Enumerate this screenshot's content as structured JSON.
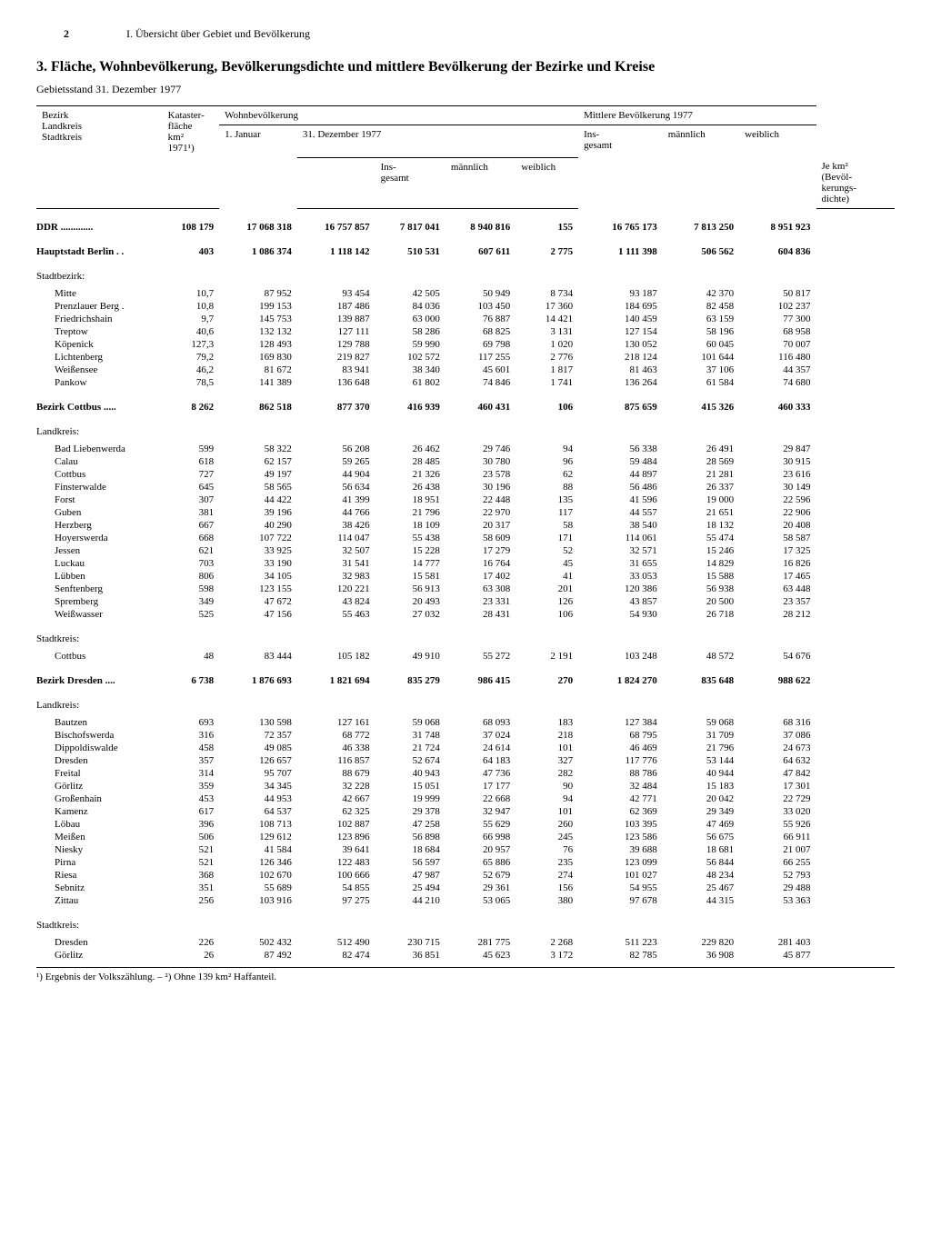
{
  "page_number": "2",
  "section_header": "I. Übersicht über Gebiet und Bevölkerung",
  "title": "3. Fläche, Wohnbevölkerung, Bevölkerungsdichte und mittlere Bevölkerung der Bezirke und Kreise",
  "subtitle": "Gebietsstand 31. Dezember 1977",
  "columns": {
    "c1a": "Bezirk",
    "c1b": "Landkreis",
    "c1c": "Stadtkreis",
    "c2a": "Kataster-",
    "c2b": "fläche",
    "c2c": "km²",
    "c2d": "1971¹)",
    "c3": "Wohnbevölkerung",
    "c4": "1. Januar",
    "c5": "31. Dezember 1977",
    "c6": "Ins-\ngesamt",
    "c7": "männlich",
    "c8": "weiblich",
    "c9": "Je km²\n(Bevöl-\nkerungs-\ndichte)",
    "c10": "Mittlere Bevölkerung 1977",
    "c11": "Ins-\ngesamt",
    "c12": "männlich",
    "c13": "weiblich"
  },
  "rows": [
    {
      "type": "bold",
      "label": "DDR .............",
      "km": "108 179",
      "jan": "17 068 318",
      "ins": "16 757 857",
      "m": "7 817 041",
      "w": "8 940 816",
      "d": "155",
      "mins": "16 765 173",
      "mm": "7 813 250",
      "mw": "8 951 923"
    },
    {
      "type": "bold",
      "label": "Hauptstadt Berlin . .",
      "km": "403",
      "jan": "1 086 374",
      "ins": "1 118 142",
      "m": "510 531",
      "w": "607 611",
      "d": "2 775",
      "mins": "1 111 398",
      "mm": "506 562",
      "mw": "604 836"
    },
    {
      "type": "section",
      "label": "Stadtbezirk:"
    },
    {
      "label": "Mitte",
      "km": "10,7",
      "jan": "87 952",
      "ins": "93 454",
      "m": "42 505",
      "w": "50 949",
      "d": "8 734",
      "mins": "93 187",
      "mm": "42 370",
      "mw": "50 817"
    },
    {
      "label": "Prenzlauer Berg .",
      "km": "10,8",
      "jan": "199 153",
      "ins": "187 486",
      "m": "84 036",
      "w": "103 450",
      "d": "17 360",
      "mins": "184 695",
      "mm": "82 458",
      "mw": "102 237"
    },
    {
      "label": "Friedrichshain",
      "km": "9,7",
      "jan": "145 753",
      "ins": "139 887",
      "m": "63 000",
      "w": "76 887",
      "d": "14 421",
      "mins": "140 459",
      "mm": "63 159",
      "mw": "77 300"
    },
    {
      "label": "Treptow",
      "km": "40,6",
      "jan": "132 132",
      "ins": "127 111",
      "m": "58 286",
      "w": "68 825",
      "d": "3 131",
      "mins": "127 154",
      "mm": "58 196",
      "mw": "68 958"
    },
    {
      "label": "Köpenick",
      "km": "127,3",
      "jan": "128 493",
      "ins": "129 788",
      "m": "59 990",
      "w": "69 798",
      "d": "1 020",
      "mins": "130 052",
      "mm": "60 045",
      "mw": "70 007"
    },
    {
      "label": "Lichtenberg",
      "km": "79,2",
      "jan": "169 830",
      "ins": "219 827",
      "m": "102 572",
      "w": "117 255",
      "d": "2 776",
      "mins": "218 124",
      "mm": "101 644",
      "mw": "116 480"
    },
    {
      "label": "Weißensee",
      "km": "46,2",
      "jan": "81 672",
      "ins": "83 941",
      "m": "38 340",
      "w": "45 601",
      "d": "1 817",
      "mins": "81 463",
      "mm": "37 106",
      "mw": "44 357"
    },
    {
      "label": "Pankow",
      "km": "78,5",
      "jan": "141 389",
      "ins": "136 648",
      "m": "61 802",
      "w": "74 846",
      "d": "1 741",
      "mins": "136 264",
      "mm": "61 584",
      "mw": "74 680"
    },
    {
      "type": "bold",
      "label": "Bezirk Cottbus .....",
      "km": "8 262",
      "jan": "862 518",
      "ins": "877 370",
      "m": "416 939",
      "w": "460 431",
      "d": "106",
      "mins": "875 659",
      "mm": "415 326",
      "mw": "460 333"
    },
    {
      "type": "section",
      "label": "Landkreis:"
    },
    {
      "label": "Bad Liebenwerda",
      "km": "599",
      "jan": "58 322",
      "ins": "56 208",
      "m": "26 462",
      "w": "29 746",
      "d": "94",
      "mins": "56 338",
      "mm": "26 491",
      "mw": "29 847"
    },
    {
      "label": "Calau",
      "km": "618",
      "jan": "62 157",
      "ins": "59 265",
      "m": "28 485",
      "w": "30 780",
      "d": "96",
      "mins": "59 484",
      "mm": "28 569",
      "mw": "30 915"
    },
    {
      "label": "Cottbus",
      "km": "727",
      "jan": "49 197",
      "ins": "44 904",
      "m": "21 326",
      "w": "23 578",
      "d": "62",
      "mins": "44 897",
      "mm": "21 281",
      "mw": "23 616"
    },
    {
      "label": "Finsterwalde",
      "km": "645",
      "jan": "58 565",
      "ins": "56 634",
      "m": "26 438",
      "w": "30 196",
      "d": "88",
      "mins": "56 486",
      "mm": "26 337",
      "mw": "30 149"
    },
    {
      "label": "Forst",
      "km": "307",
      "jan": "44 422",
      "ins": "41 399",
      "m": "18 951",
      "w": "22 448",
      "d": "135",
      "mins": "41 596",
      "mm": "19 000",
      "mw": "22 596"
    },
    {
      "label": "Guben",
      "km": "381",
      "jan": "39 196",
      "ins": "44 766",
      "m": "21 796",
      "w": "22 970",
      "d": "117",
      "mins": "44 557",
      "mm": "21 651",
      "mw": "22 906"
    },
    {
      "label": "Herzberg",
      "km": "667",
      "jan": "40 290",
      "ins": "38 426",
      "m": "18 109",
      "w": "20 317",
      "d": "58",
      "mins": "38 540",
      "mm": "18 132",
      "mw": "20 408"
    },
    {
      "label": "Hoyerswerda",
      "km": "668",
      "jan": "107 722",
      "ins": "114 047",
      "m": "55 438",
      "w": "58 609",
      "d": "171",
      "mins": "114 061",
      "mm": "55 474",
      "mw": "58 587"
    },
    {
      "label": "Jessen",
      "km": "621",
      "jan": "33 925",
      "ins": "32 507",
      "m": "15 228",
      "w": "17 279",
      "d": "52",
      "mins": "32 571",
      "mm": "15 246",
      "mw": "17 325"
    },
    {
      "label": "Luckau",
      "km": "703",
      "jan": "33 190",
      "ins": "31 541",
      "m": "14 777",
      "w": "16 764",
      "d": "45",
      "mins": "31 655",
      "mm": "14 829",
      "mw": "16 826"
    },
    {
      "label": "Lübben",
      "km": "806",
      "jan": "34 105",
      "ins": "32 983",
      "m": "15 581",
      "w": "17 402",
      "d": "41",
      "mins": "33 053",
      "mm": "15 588",
      "mw": "17 465"
    },
    {
      "label": "Senftenberg",
      "km": "598",
      "jan": "123 155",
      "ins": "120 221",
      "m": "56 913",
      "w": "63 308",
      "d": "201",
      "mins": "120 386",
      "mm": "56 938",
      "mw": "63 448"
    },
    {
      "label": "Spremberg",
      "km": "349",
      "jan": "47 672",
      "ins": "43 824",
      "m": "20 493",
      "w": "23 331",
      "d": "126",
      "mins": "43 857",
      "mm": "20 500",
      "mw": "23 357"
    },
    {
      "label": "Weißwasser",
      "km": "525",
      "jan": "47 156",
      "ins": "55 463",
      "m": "27 032",
      "w": "28 431",
      "d": "106",
      "mins": "54 930",
      "mm": "26 718",
      "mw": "28 212"
    },
    {
      "type": "section",
      "label": "Stadtkreis:"
    },
    {
      "label": "Cottbus",
      "km": "48",
      "jan": "83 444",
      "ins": "105 182",
      "m": "49 910",
      "w": "55 272",
      "d": "2 191",
      "mins": "103 248",
      "mm": "48 572",
      "mw": "54 676"
    },
    {
      "type": "bold",
      "label": "Bezirk Dresden ....",
      "km": "6 738",
      "jan": "1 876 693",
      "ins": "1 821 694",
      "m": "835 279",
      "w": "986 415",
      "d": "270",
      "mins": "1 824 270",
      "mm": "835 648",
      "mw": "988 622"
    },
    {
      "type": "section",
      "label": "Landkreis:"
    },
    {
      "label": "Bautzen",
      "km": "693",
      "jan": "130 598",
      "ins": "127 161",
      "m": "59 068",
      "w": "68 093",
      "d": "183",
      "mins": "127 384",
      "mm": "59 068",
      "mw": "68 316"
    },
    {
      "label": "Bischofswerda",
      "km": "316",
      "jan": "72 357",
      "ins": "68 772",
      "m": "31 748",
      "w": "37 024",
      "d": "218",
      "mins": "68 795",
      "mm": "31 709",
      "mw": "37 086"
    },
    {
      "label": "Dippoldiswalde",
      "km": "458",
      "jan": "49 085",
      "ins": "46 338",
      "m": "21 724",
      "w": "24 614",
      "d": "101",
      "mins": "46 469",
      "mm": "21 796",
      "mw": "24 673"
    },
    {
      "label": "Dresden",
      "km": "357",
      "jan": "126 657",
      "ins": "116 857",
      "m": "52 674",
      "w": "64 183",
      "d": "327",
      "mins": "117 776",
      "mm": "53 144",
      "mw": "64 632"
    },
    {
      "label": "Freital",
      "km": "314",
      "jan": "95 707",
      "ins": "88 679",
      "m": "40 943",
      "w": "47 736",
      "d": "282",
      "mins": "88 786",
      "mm": "40 944",
      "mw": "47 842"
    },
    {
      "label": "Görlitz",
      "km": "359",
      "jan": "34 345",
      "ins": "32 228",
      "m": "15 051",
      "w": "17 177",
      "d": "90",
      "mins": "32 484",
      "mm": "15 183",
      "mw": "17 301"
    },
    {
      "label": "Großenhain",
      "km": "453",
      "jan": "44 953",
      "ins": "42 667",
      "m": "19 999",
      "w": "22 668",
      "d": "94",
      "mins": "42 771",
      "mm": "20 042",
      "mw": "22 729"
    },
    {
      "label": "Kamenz",
      "km": "617",
      "jan": "64 537",
      "ins": "62 325",
      "m": "29 378",
      "w": "32 947",
      "d": "101",
      "mins": "62 369",
      "mm": "29 349",
      "mw": "33 020"
    },
    {
      "label": "Löbau",
      "km": "396",
      "jan": "108 713",
      "ins": "102 887",
      "m": "47 258",
      "w": "55 629",
      "d": "260",
      "mins": "103 395",
      "mm": "47 469",
      "mw": "55 926"
    },
    {
      "label": "Meißen",
      "km": "506",
      "jan": "129 612",
      "ins": "123 896",
      "m": "56 898",
      "w": "66 998",
      "d": "245",
      "mins": "123 586",
      "mm": "56 675",
      "mw": "66 911"
    },
    {
      "label": "Niesky",
      "km": "521",
      "jan": "41 584",
      "ins": "39 641",
      "m": "18 684",
      "w": "20 957",
      "d": "76",
      "mins": "39 688",
      "mm": "18 681",
      "mw": "21 007"
    },
    {
      "label": "Pirna",
      "km": "521",
      "jan": "126 346",
      "ins": "122 483",
      "m": "56 597",
      "w": "65 886",
      "d": "235",
      "mins": "123 099",
      "mm": "56 844",
      "mw": "66 255"
    },
    {
      "label": "Riesa",
      "km": "368",
      "jan": "102 670",
      "ins": "100 666",
      "m": "47 987",
      "w": "52 679",
      "d": "274",
      "mins": "101 027",
      "mm": "48 234",
      "mw": "52 793"
    },
    {
      "label": "Sebnitz",
      "km": "351",
      "jan": "55 689",
      "ins": "54 855",
      "m": "25 494",
      "w": "29 361",
      "d": "156",
      "mins": "54 955",
      "mm": "25 467",
      "mw": "29 488"
    },
    {
      "label": "Zittau",
      "km": "256",
      "jan": "103 916",
      "ins": "97 275",
      "m": "44 210",
      "w": "53 065",
      "d": "380",
      "mins": "97 678",
      "mm": "44 315",
      "mw": "53 363"
    },
    {
      "type": "section",
      "label": "Stadtkreis:"
    },
    {
      "label": "Dresden",
      "km": "226",
      "jan": "502 432",
      "ins": "512 490",
      "m": "230 715",
      "w": "281 775",
      "d": "2 268",
      "mins": "511 223",
      "mm": "229 820",
      "mw": "281 403"
    },
    {
      "label": "Görlitz",
      "km": "26",
      "jan": "87 492",
      "ins": "82 474",
      "m": "36 851",
      "w": "45 623",
      "d": "3 172",
      "mins": "82 785",
      "mm": "36 908",
      "mw": "45 877"
    }
  ],
  "footnote": "¹) Ergebnis der Volkszählung. – ²) Ohne 139 km² Haffanteil."
}
